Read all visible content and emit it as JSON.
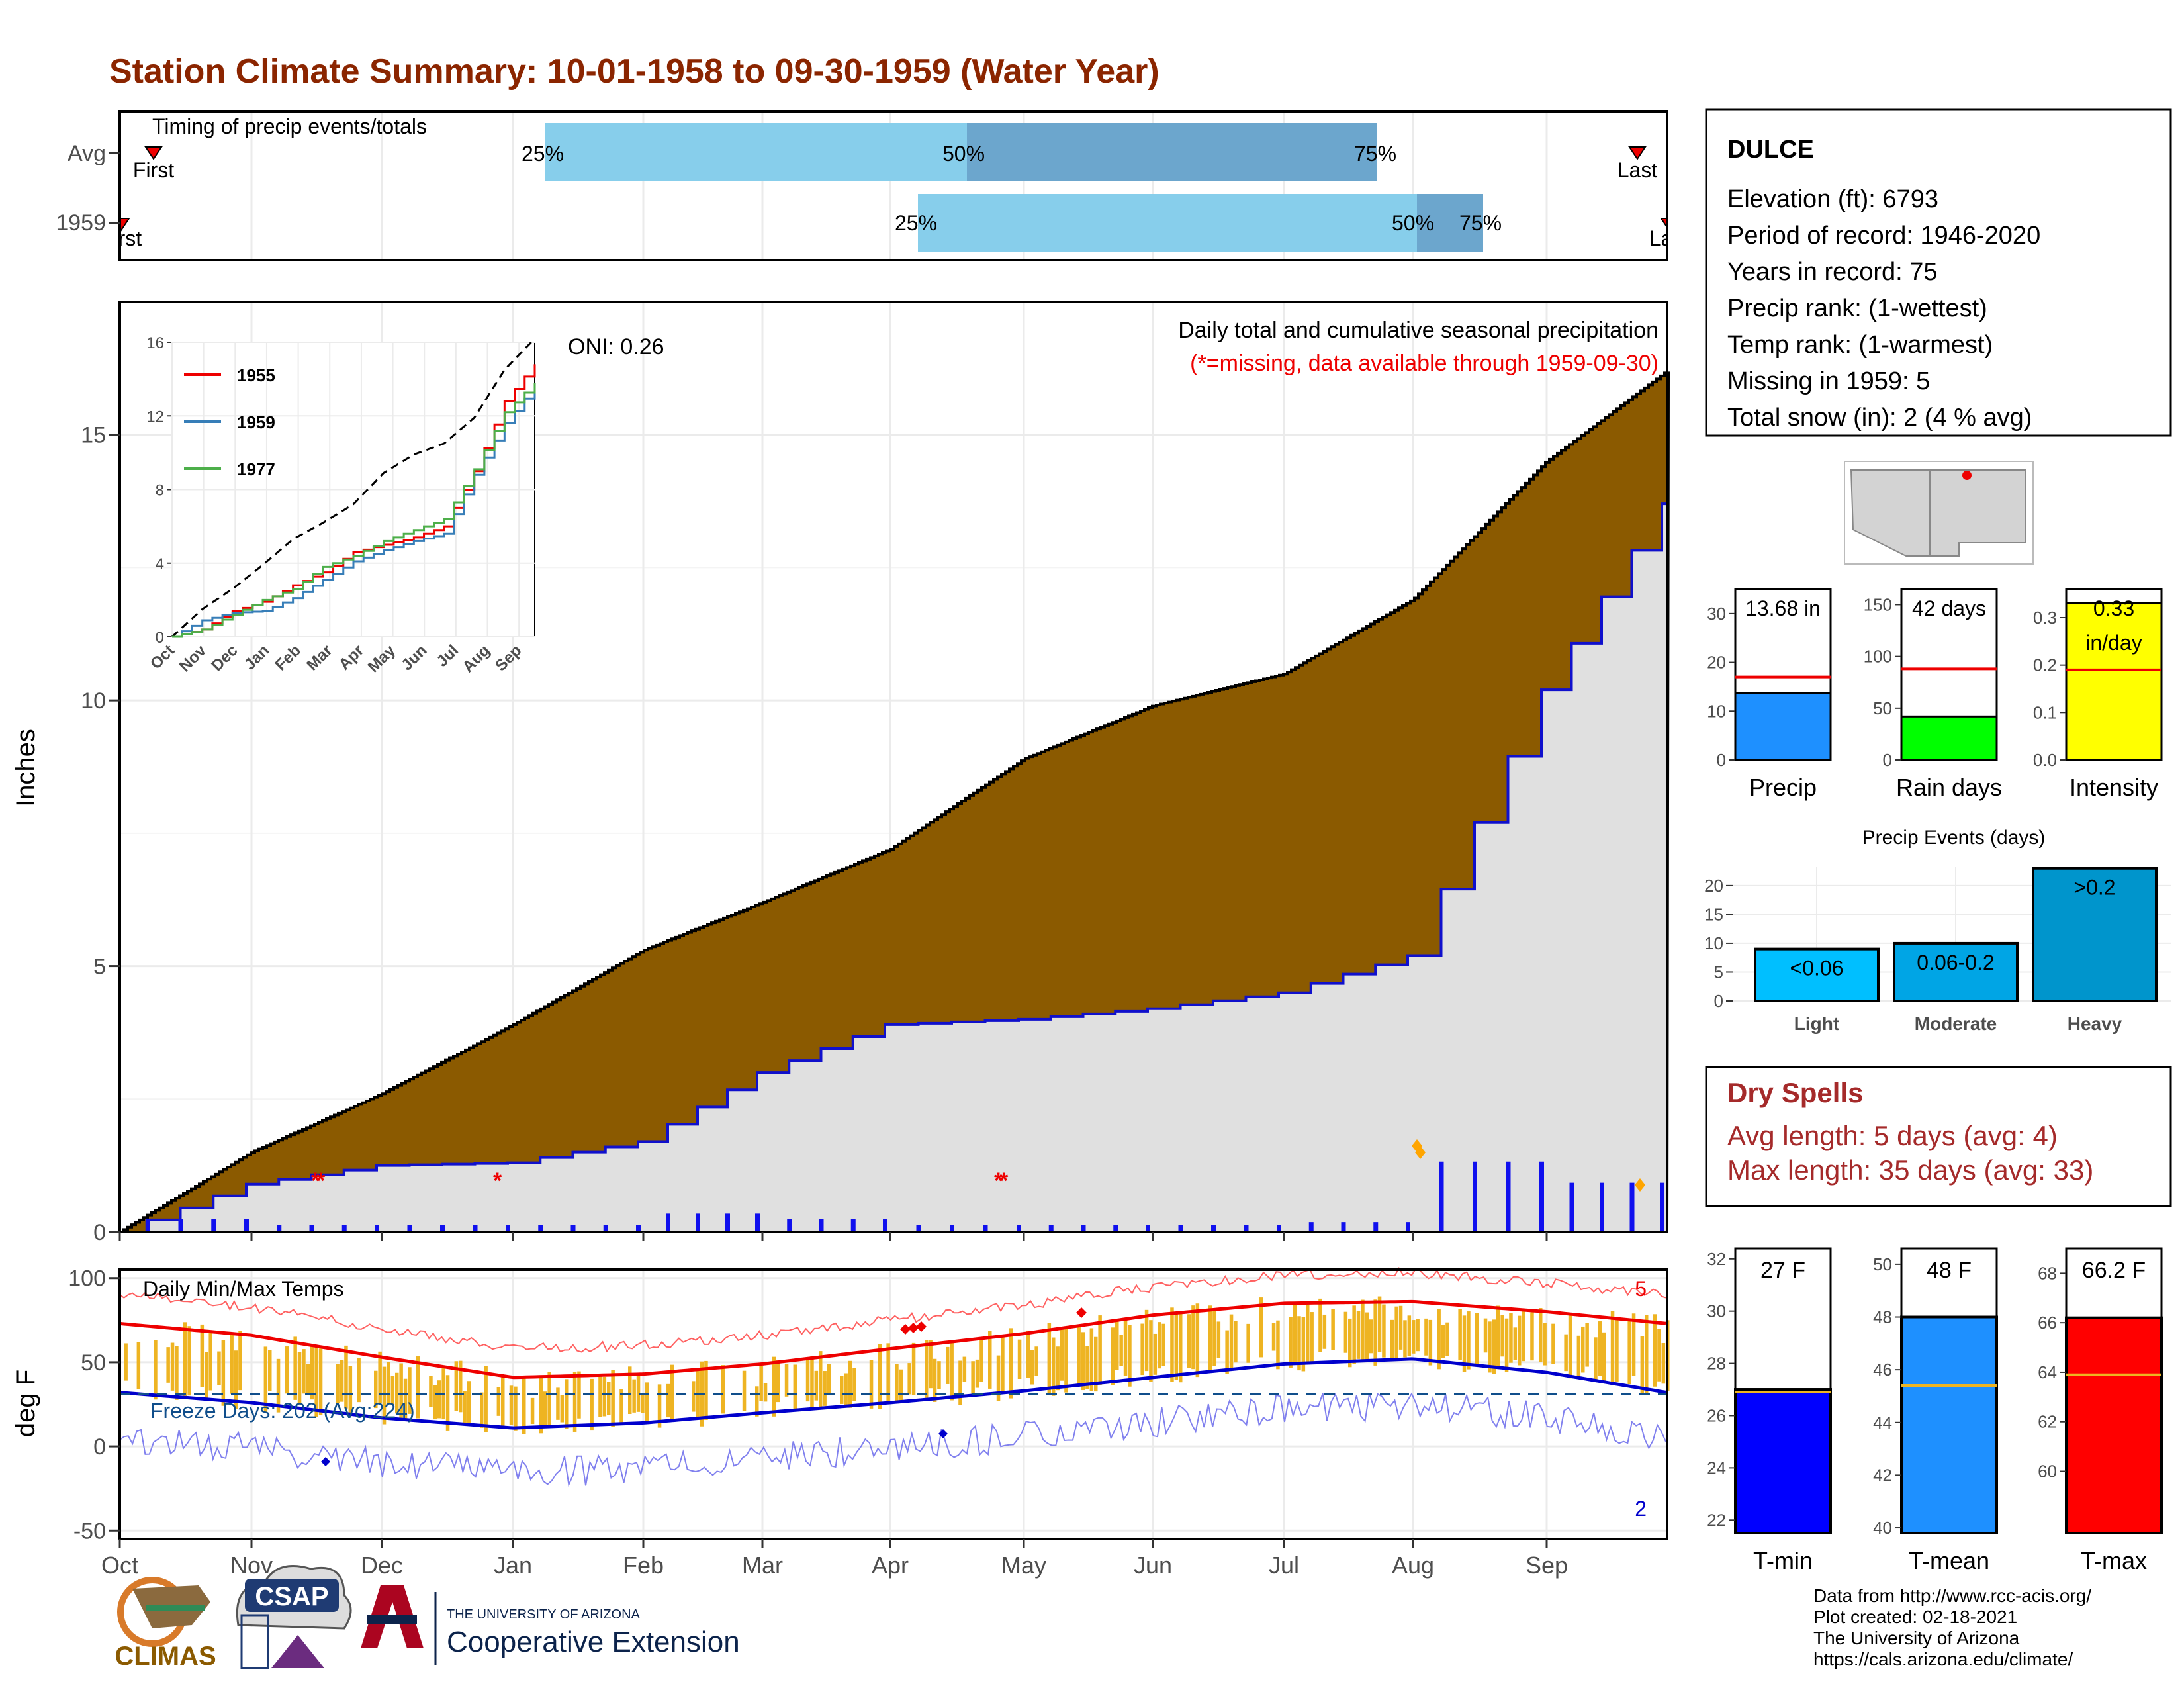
{
  "title": "Station Climate Summary: 10-01-1958 to 09-30-1959 (Water Year)",
  "colors": {
    "title": "#8B2500",
    "brown": "#8B5A00",
    "grey_fill": "#E0E0E0",
    "blue_line": "#1010CC",
    "light_blue": "#87CEEB",
    "mid_blue": "#6CA6CD",
    "red": "#EE0000",
    "orange": "#EEB422",
    "dry_spell": "#A52A2A"
  },
  "timing": {
    "label": "Timing of precip events/totals",
    "rows": [
      {
        "name": "Avg",
        "first": "First",
        "last": "Last",
        "q25": "25%",
        "q50": "50%",
        "q75": "75%"
      },
      {
        "name": "1959",
        "first": "First",
        "last": "Last",
        "q25": "25%",
        "q50": "50%",
        "q75": "75%"
      }
    ]
  },
  "main": {
    "ylabel": "Inches",
    "oni": "ONI: 0.26",
    "subtitle": "Daily total and cumulative seasonal precipitation",
    "missing_note": "(*=missing, data available through 1959-09-30)",
    "yticks": [
      "0",
      "5",
      "10",
      "15"
    ]
  },
  "months": [
    "Oct",
    "Nov",
    "Dec",
    "Jan",
    "Feb",
    "Mar",
    "Apr",
    "May",
    "Jun",
    "Jul",
    "Aug",
    "Sep"
  ],
  "inset": {
    "legend": [
      "1955",
      "1959",
      "1977"
    ],
    "yticks": [
      "0",
      "4",
      "8",
      "12",
      "16"
    ]
  },
  "station": {
    "name": "DULCE",
    "lines": [
      "Elevation (ft): 6793",
      "Period of record: 1946-2020",
      "Years in record: 75",
      "Precip rank:  (1-wettest)",
      "Temp rank:  (1-warmest)",
      "Missing in 1959: 5",
      "Total snow (in): 2 (4 % avg)"
    ]
  },
  "mini_bars": [
    {
      "label": "Precip",
      "value_text": "13.68 in",
      "yticks": [
        "0",
        "10",
        "20",
        "30"
      ]
    },
    {
      "label": "Rain days",
      "value_text": "42 days",
      "yticks": [
        "0",
        "50",
        "100",
        "150"
      ]
    },
    {
      "label": "Intensity",
      "value_text": "0.33",
      "value_text2": "in/day",
      "yticks": [
        "0.0",
        "0.1",
        "0.2",
        "0.3"
      ]
    }
  ],
  "precip_events": {
    "title": "Precip Events (days)",
    "yticks": [
      "0",
      "5",
      "10",
      "15",
      "20"
    ],
    "bars": [
      {
        "cat": "Light",
        "label": "<0.06"
      },
      {
        "cat": "Moderate",
        "label": "0.06-0.2"
      },
      {
        "cat": "Heavy",
        "label": ">0.2"
      }
    ]
  },
  "dry_spells": {
    "title": "Dry Spells",
    "avg": "Avg length: 5 days (avg: 4)",
    "max": "Max length: 35 days (avg: 33)"
  },
  "temp": {
    "title": "Daily Min/Max Temps",
    "ylabel": "deg F",
    "yticks": [
      "-50",
      "0",
      "50",
      "100"
    ],
    "freeze": "Freeze Days: 202 (Avg:224)",
    "count_hi": "5",
    "count_lo": "2"
  },
  "temp_bars": [
    {
      "label": "T-min",
      "value_text": "27 F",
      "yticks": [
        "22",
        "24",
        "26",
        "28",
        "30",
        "32"
      ]
    },
    {
      "label": "T-mean",
      "value_text": "48 F",
      "yticks": [
        "40",
        "42",
        "44",
        "46",
        "48",
        "50"
      ]
    },
    {
      "label": "T-max",
      "value_text": "66.2 F",
      "yticks": [
        "60",
        "62",
        "64",
        "66",
        "68"
      ]
    }
  ],
  "footer": {
    "lines": [
      "Data from http://www.rcc-acis.org/",
      "Plot created: 02-18-2021",
      "The University of Arizona",
      "https://cals.arizona.edu/climate/"
    ],
    "climas": "CLIMAS",
    "csap": "CSAP",
    "ua_small": "THE UNIVERSITY OF ARIZONA",
    "ua_big": "Cooperative Extension"
  },
  "chart_data": [
    {
      "type": "area",
      "title": "Daily total and cumulative seasonal precipitation",
      "ylabel": "Inches",
      "ylim": [
        0,
        17.5
      ],
      "x": [
        "Oct",
        "Nov",
        "Dec",
        "Jan",
        "Feb",
        "Mar",
        "Apr",
        "May",
        "Jun",
        "Jul",
        "Aug",
        "Sep",
        "Sep-30"
      ],
      "series": [
        {
          "name": "avg_cumulative",
          "values": [
            0,
            1.5,
            2.6,
            3.9,
            5.3,
            6.2,
            7.2,
            8.9,
            9.9,
            10.5,
            11.9,
            14.5,
            16.2
          ]
        },
        {
          "name": "1959_cumulative",
          "values": [
            0,
            0.9,
            1.25,
            1.3,
            1.7,
            3.0,
            3.9,
            4.0,
            4.2,
            4.5,
            5.2,
            10.2,
            13.7
          ]
        }
      ]
    },
    {
      "type": "line",
      "title": "Daily Min/Max Temps",
      "ylabel": "deg F",
      "ylim": [
        -55,
        105
      ],
      "x": [
        "Oct",
        "Nov",
        "Dec",
        "Jan",
        "Feb",
        "Mar",
        "Apr",
        "May",
        "Jun",
        "Jul",
        "Aug",
        "Sep",
        "Sep-30"
      ],
      "series": [
        {
          "name": "avg_max",
          "values": [
            73,
            66,
            53,
            41,
            43,
            49,
            58,
            67,
            78,
            85,
            86,
            80,
            73
          ]
        },
        {
          "name": "avg_min",
          "values": [
            32,
            26,
            17,
            11,
            14,
            20,
            26,
            33,
            41,
            49,
            52,
            44,
            32
          ]
        }
      ],
      "freeze_line": 32
    },
    {
      "type": "bar",
      "title": "Precip Events (days)",
      "categories": [
        "Light",
        "Moderate",
        "Heavy"
      ],
      "values": [
        9,
        10,
        23
      ],
      "ylim": [
        0,
        23
      ]
    },
    {
      "type": "bar",
      "categories": [
        "Precip",
        "Rain days",
        "Intensity"
      ],
      "values": [
        13.68,
        42,
        0.33
      ],
      "averages": [
        17,
        88,
        0.19
      ]
    },
    {
      "type": "bar",
      "categories": [
        "T-min",
        "T-mean",
        "T-max"
      ],
      "values": [
        27,
        48,
        66.2
      ],
      "averages": [
        26.9,
        45.4,
        63.9
      ]
    }
  ]
}
